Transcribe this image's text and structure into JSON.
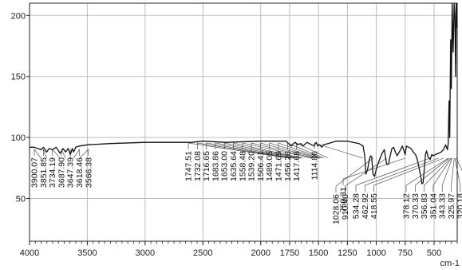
{
  "chart_data": {
    "type": "line",
    "title": "",
    "xlabel": "",
    "ylabel": "",
    "x_unit": "cm-1",
    "xlim": [
      4000,
      300
    ],
    "ylim": [
      15,
      210
    ],
    "x_reversed": true,
    "grid": true,
    "colors": {
      "line": "#111111",
      "grid": "#bdbdbd",
      "axis": "#222222",
      "leader": "#333333"
    },
    "x_ticks": [
      {
        "value": 4000,
        "label": "4000"
      },
      {
        "value": 3500,
        "label": "3500"
      },
      {
        "value": 3000,
        "label": "3000"
      },
      {
        "value": 2500,
        "label": "2500"
      },
      {
        "value": 2000,
        "label": "2000"
      },
      {
        "value": 1750,
        "label": "1750"
      },
      {
        "value": 1500,
        "label": "1500"
      },
      {
        "value": 1250,
        "label": "1250"
      },
      {
        "value": 1000,
        "label": "1000"
      },
      {
        "value": 750,
        "label": "750"
      },
      {
        "value": 500,
        "label": "500"
      }
    ],
    "y_ticks": [
      {
        "value": 200,
        "label": "200"
      },
      {
        "value": 150,
        "label": "150"
      },
      {
        "value": 100,
        "label": "100"
      },
      {
        "value": 50,
        "label": "50"
      }
    ],
    "series": [
      {
        "points": [
          [
            4000,
            92
          ],
          [
            3960,
            92
          ],
          [
            3930,
            91
          ],
          [
            3900,
            90
          ],
          [
            3880,
            92
          ],
          [
            3851.85,
            88
          ],
          [
            3830,
            91
          ],
          [
            3800,
            90
          ],
          [
            3770,
            92
          ],
          [
            3734.19,
            87
          ],
          [
            3710,
            91
          ],
          [
            3687.9,
            88
          ],
          [
            3665,
            91
          ],
          [
            3647.39,
            86
          ],
          [
            3630,
            91
          ],
          [
            3618.46,
            88
          ],
          [
            3600,
            92
          ],
          [
            3566.38,
            93
          ],
          [
            3500,
            94
          ],
          [
            3300,
            95
          ],
          [
            3000,
            96
          ],
          [
            2600,
            96
          ],
          [
            2500,
            97
          ],
          [
            2300,
            96
          ],
          [
            2000,
            97
          ],
          [
            1780,
            97
          ],
          [
            1747.51,
            94
          ],
          [
            1732.08,
            93
          ],
          [
            1716.65,
            95
          ],
          [
            1700,
            96
          ],
          [
            1683.86,
            94
          ],
          [
            1653,
            95
          ],
          [
            1635.64,
            93
          ],
          [
            1600,
            96
          ],
          [
            1558.48,
            94
          ],
          [
            1539.2,
            93
          ],
          [
            1520,
            96
          ],
          [
            1506.41,
            93
          ],
          [
            1489.05,
            94
          ],
          [
            1471.69,
            92
          ],
          [
            1456.26,
            94
          ],
          [
            1417.68,
            95
          ],
          [
            1350,
            97
          ],
          [
            1250,
            97
          ],
          [
            1200,
            96
          ],
          [
            1150,
            95
          ],
          [
            1114.86,
            93
          ],
          [
            1100,
            85
          ],
          [
            1090,
            70
          ],
          [
            1075,
            74
          ],
          [
            1060,
            82
          ],
          [
            1050,
            85
          ],
          [
            1040,
            84
          ],
          [
            1028.06,
            70
          ],
          [
            1015,
            68
          ],
          [
            1000,
            74
          ],
          [
            980,
            80
          ],
          [
            950,
            87
          ],
          [
            930,
            90
          ],
          [
            910.4,
            78
          ],
          [
            895,
            78
          ],
          [
            880,
            85
          ],
          [
            865,
            91
          ],
          [
            850,
            92
          ],
          [
            835,
            88
          ],
          [
            820,
            85
          ],
          [
            790,
            90
          ],
          [
            775,
            93
          ],
          [
            760,
            89
          ],
          [
            750.31,
            86
          ],
          [
            740,
            93
          ],
          [
            720,
            92
          ],
          [
            700,
            91
          ],
          [
            680,
            88
          ],
          [
            660,
            86
          ],
          [
            645,
            82
          ],
          [
            630,
            75
          ],
          [
            615,
            68
          ],
          [
            605,
            62
          ],
          [
            595,
            63
          ],
          [
            585,
            74
          ],
          [
            575,
            86
          ],
          [
            565,
            89
          ],
          [
            551.19,
            84
          ],
          [
            534.28,
            82
          ],
          [
            520,
            86
          ],
          [
            505,
            85
          ],
          [
            490,
            86
          ],
          [
            462.92,
            87
          ],
          [
            440,
            88
          ],
          [
            418.55,
            90
          ],
          [
            400,
            94
          ],
          [
            384,
            90
          ],
          [
            378.12,
            95
          ],
          [
            370.33,
            130
          ],
          [
            365,
            100
          ],
          [
            356.83,
            180
          ],
          [
            351.04,
            140
          ],
          [
            343.33,
            210
          ],
          [
            335,
            170
          ],
          [
            325.97,
            210
          ],
          [
            320.18,
            200
          ],
          [
            314,
            150
          ],
          [
            308.61,
            210
          ],
          [
            300,
            190
          ]
        ]
      }
    ],
    "annotations": [
      {
        "label": "3900.07",
        "x": 3900.07
      },
      {
        "label": "3851.85",
        "x": 3851.85
      },
      {
        "label": "3734.19",
        "x": 3734.19
      },
      {
        "label": "3687.90",
        "x": 3687.9
      },
      {
        "label": "3647.39",
        "x": 3647.39
      },
      {
        "label": "3618.46",
        "x": 3618.46
      },
      {
        "label": "3566.38",
        "x": 3566.38
      },
      {
        "label": "1747.51",
        "x": 1747.51
      },
      {
        "label": "1732.08",
        "x": 1732.08
      },
      {
        "label": "1716.65",
        "x": 1716.65
      },
      {
        "label": "1683.86",
        "x": 1683.86
      },
      {
        "label": "1653.00",
        "x": 1653.0
      },
      {
        "label": "1635.64",
        "x": 1635.64
      },
      {
        "label": "1558.48",
        "x": 1558.48
      },
      {
        "label": "1539.20",
        "x": 1539.2
      },
      {
        "label": "1506.41",
        "x": 1506.41
      },
      {
        "label": "1489.05",
        "x": 1489.05
      },
      {
        "label": "1471.69",
        "x": 1471.69
      },
      {
        "label": "1456.26",
        "x": 1456.26
      },
      {
        "label": "1417.68",
        "x": 1417.68
      },
      {
        "label": "1114.86",
        "x": 1114.86
      },
      {
        "label": "1028.06",
        "x": 1028.06
      },
      {
        "label": "910.40",
        "x": 910.4
      },
      {
        "label": "750.31",
        "x": 750.31
      },
      {
        "label": "534.28",
        "x": 534.28
      },
      {
        "label": "462.92",
        "x": 462.92
      },
      {
        "label": "418.55",
        "x": 418.55
      },
      {
        "label": "378.12",
        "x": 378.12
      },
      {
        "label": "370.33",
        "x": 370.33
      },
      {
        "label": "356.83",
        "x": 356.83
      },
      {
        "label": "351.04",
        "x": 351.04
      },
      {
        "label": "343.33",
        "x": 343.33
      },
      {
        "label": "325.97",
        "x": 325.97
      },
      {
        "label": "320.18",
        "x": 320.18
      },
      {
        "label": "308.61",
        "x": 308.61
      }
    ]
  }
}
